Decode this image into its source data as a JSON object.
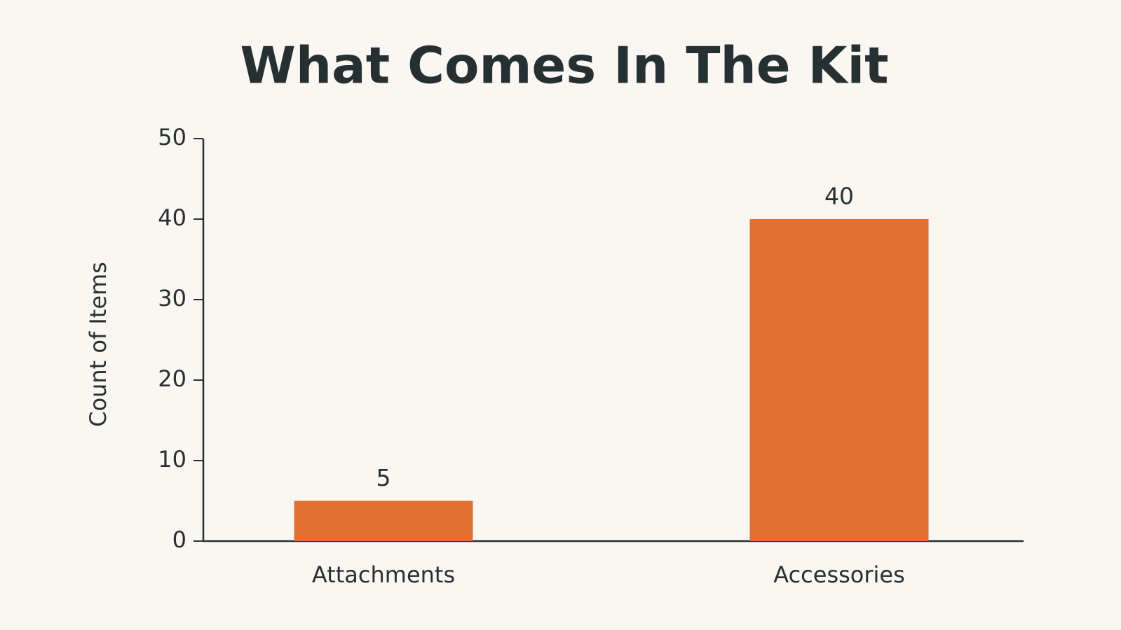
{
  "chart_data": {
    "type": "bar",
    "title": "What Comes In The Kit",
    "y_label": "Count of Items",
    "categories": [
      "Attachments",
      "Accessories"
    ],
    "values": [
      5,
      40
    ],
    "color": "#e07133",
    "ylim": [
      0,
      50
    ],
    "yticks": [
      0,
      10,
      20,
      30,
      40,
      50
    ],
    "grid": false
  }
}
